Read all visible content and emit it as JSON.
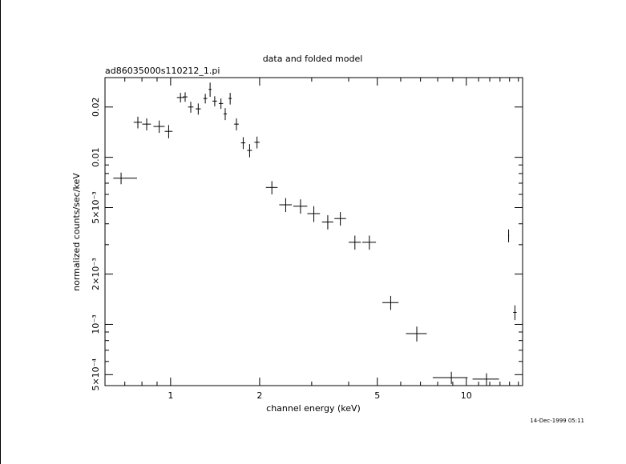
{
  "chart_data": {
    "type": "scatter",
    "title": "data and folded model",
    "subtitle": "ad86035000s110212_1.pi",
    "xlabel": "channel energy (keV)",
    "ylabel": "normalized counts/sec/keV",
    "footer": "14-Dec-1999 05:11",
    "x_scale": "log",
    "y_scale": "log",
    "xlim": [
      0.6,
      15.5
    ],
    "ylim": [
      0.00043,
      0.03
    ],
    "grid": false,
    "legend": "none",
    "x_ticks": [
      {
        "value": 1,
        "label": "1"
      },
      {
        "value": 2,
        "label": "2"
      },
      {
        "value": 5,
        "label": "5"
      },
      {
        "value": 10,
        "label": "10"
      }
    ],
    "y_ticks": [
      {
        "value": 0.0005,
        "label": "5×10⁻⁴"
      },
      {
        "value": 0.001,
        "label": "10⁻³"
      },
      {
        "value": 0.002,
        "label": "2×10⁻³"
      },
      {
        "value": 0.005,
        "label": "5×10⁻³"
      },
      {
        "value": 0.01,
        "label": "0.01"
      },
      {
        "value": 0.02,
        "label": "0.02"
      }
    ],
    "series": [
      {
        "points": [
          {
            "x": 0.68,
            "y": 0.0075,
            "xerr_lo": 0.04,
            "xerr_hi": 0.09,
            "yerr_lo": 0.0006,
            "yerr_hi": 0.0006
          },
          {
            "x": 0.775,
            "y": 0.0162,
            "xerr_lo": 0.025,
            "xerr_hi": 0.025,
            "yerr_lo": 0.0013,
            "yerr_hi": 0.0013
          },
          {
            "x": 0.83,
            "y": 0.0158,
            "xerr_lo": 0.028,
            "xerr_hi": 0.028,
            "yerr_lo": 0.0013,
            "yerr_hi": 0.0013
          },
          {
            "x": 0.915,
            "y": 0.0153,
            "xerr_lo": 0.04,
            "xerr_hi": 0.04,
            "yerr_lo": 0.0013,
            "yerr_hi": 0.0013
          },
          {
            "x": 0.985,
            "y": 0.0143,
            "xerr_lo": 0.03,
            "xerr_hi": 0.03,
            "yerr_lo": 0.0013,
            "yerr_hi": 0.0013
          },
          {
            "x": 1.08,
            "y": 0.0228,
            "xerr_lo": 0.03,
            "xerr_hi": 0.03,
            "yerr_lo": 0.0015,
            "yerr_hi": 0.0015
          },
          {
            "x": 1.12,
            "y": 0.023,
            "xerr_lo": 0.02,
            "xerr_hi": 0.02,
            "yerr_lo": 0.0015,
            "yerr_hi": 0.0015
          },
          {
            "x": 1.17,
            "y": 0.02,
            "xerr_lo": 0.025,
            "xerr_hi": 0.025,
            "yerr_lo": 0.0015,
            "yerr_hi": 0.0015
          },
          {
            "x": 1.24,
            "y": 0.0195,
            "xerr_lo": 0.025,
            "xerr_hi": 0.025,
            "yerr_lo": 0.0015,
            "yerr_hi": 0.0015
          },
          {
            "x": 1.31,
            "y": 0.0225,
            "xerr_lo": 0.02,
            "xerr_hi": 0.02,
            "yerr_lo": 0.0015,
            "yerr_hi": 0.0015
          },
          {
            "x": 1.36,
            "y": 0.0255,
            "xerr_lo": 0.015,
            "xerr_hi": 0.015,
            "yerr_lo": 0.0025,
            "yerr_hi": 0.0025
          },
          {
            "x": 1.41,
            "y": 0.0217,
            "xerr_lo": 0.025,
            "xerr_hi": 0.025,
            "yerr_lo": 0.0015,
            "yerr_hi": 0.0015
          },
          {
            "x": 1.48,
            "y": 0.021,
            "xerr_lo": 0.025,
            "xerr_hi": 0.025,
            "yerr_lo": 0.0015,
            "yerr_hi": 0.0015
          },
          {
            "x": 1.53,
            "y": 0.0182,
            "xerr_lo": 0.02,
            "xerr_hi": 0.02,
            "yerr_lo": 0.0015,
            "yerr_hi": 0.0015
          },
          {
            "x": 1.59,
            "y": 0.0225,
            "xerr_lo": 0.02,
            "xerr_hi": 0.02,
            "yerr_lo": 0.0018,
            "yerr_hi": 0.0018
          },
          {
            "x": 1.67,
            "y": 0.0158,
            "xerr_lo": 0.03,
            "xerr_hi": 0.03,
            "yerr_lo": 0.0013,
            "yerr_hi": 0.0013
          },
          {
            "x": 1.76,
            "y": 0.0122,
            "xerr_lo": 0.03,
            "xerr_hi": 0.03,
            "yerr_lo": 0.001,
            "yerr_hi": 0.001
          },
          {
            "x": 1.85,
            "y": 0.011,
            "xerr_lo": 0.035,
            "xerr_hi": 0.035,
            "yerr_lo": 0.001,
            "yerr_hi": 0.001
          },
          {
            "x": 1.96,
            "y": 0.0123,
            "xerr_lo": 0.04,
            "xerr_hi": 0.04,
            "yerr_lo": 0.001,
            "yerr_hi": 0.001
          },
          {
            "x": 2.2,
            "y": 0.0066,
            "xerr_lo": 0.1,
            "xerr_hi": 0.1,
            "yerr_lo": 0.0006,
            "yerr_hi": 0.0006
          },
          {
            "x": 2.45,
            "y": 0.0052,
            "xerr_lo": 0.12,
            "xerr_hi": 0.12,
            "yerr_lo": 0.0005,
            "yerr_hi": 0.0005
          },
          {
            "x": 2.75,
            "y": 0.0051,
            "xerr_lo": 0.15,
            "xerr_hi": 0.15,
            "yerr_lo": 0.0005,
            "yerr_hi": 0.0005
          },
          {
            "x": 3.05,
            "y": 0.0046,
            "xerr_lo": 0.15,
            "xerr_hi": 0.15,
            "yerr_lo": 0.0005,
            "yerr_hi": 0.0005
          },
          {
            "x": 3.4,
            "y": 0.0041,
            "xerr_lo": 0.15,
            "xerr_hi": 0.15,
            "yerr_lo": 0.0004,
            "yerr_hi": 0.0004
          },
          {
            "x": 3.75,
            "y": 0.0043,
            "xerr_lo": 0.17,
            "xerr_hi": 0.17,
            "yerr_lo": 0.0004,
            "yerr_hi": 0.0004
          },
          {
            "x": 4.2,
            "y": 0.0031,
            "xerr_lo": 0.2,
            "xerr_hi": 0.2,
            "yerr_lo": 0.0003,
            "yerr_hi": 0.0003
          },
          {
            "x": 4.7,
            "y": 0.0031,
            "xerr_lo": 0.25,
            "xerr_hi": 0.25,
            "yerr_lo": 0.0003,
            "yerr_hi": 0.0003
          },
          {
            "x": 5.55,
            "y": 0.00135,
            "xerr_lo": 0.35,
            "xerr_hi": 0.35,
            "yerr_lo": 0.00013,
            "yerr_hi": 0.00013
          },
          {
            "x": 6.8,
            "y": 0.00088,
            "xerr_lo": 0.55,
            "xerr_hi": 0.55,
            "yerr_lo": 9e-05,
            "yerr_hi": 9e-05
          },
          {
            "x": 8.9,
            "y": 0.00048,
            "xerr_lo": 1.2,
            "xerr_hi": 1.2,
            "yerr_lo": 4e-05,
            "yerr_hi": 4e-05
          },
          {
            "x": 11.7,
            "y": 0.00047,
            "xerr_lo": 1.2,
            "xerr_hi": 1.2,
            "yerr_lo": 4e-05,
            "yerr_hi": 4e-05
          },
          {
            "x": 13.9,
            "y": 0.0034,
            "xerr_lo": 0.05,
            "xerr_hi": 0.05,
            "yerr_lo": 0.0003,
            "yerr_hi": 0.0003
          },
          {
            "x": 14.6,
            "y": 0.00118,
            "xerr_lo": 0.2,
            "xerr_hi": 0.2,
            "yerr_lo": 0.00012,
            "yerr_hi": 0.00012
          }
        ]
      }
    ]
  }
}
